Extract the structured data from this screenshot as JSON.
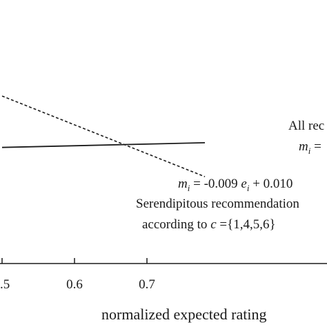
{
  "chart_data": {
    "type": "line",
    "xlabel": "normalized expected rating",
    "xlim": [
      0.5,
      0.78
    ],
    "ylim": [
      0,
      1
    ],
    "x_ticks": [
      {
        "value": 0.5,
        "label": ".5"
      },
      {
        "value": 0.6,
        "label": "0.6"
      },
      {
        "value": 0.7,
        "label": "0.7"
      }
    ],
    "series": [
      {
        "style": "solid",
        "x": [
          0.5,
          0.78
        ],
        "y": [
          0.492,
          0.512
        ]
      },
      {
        "style": "dashed",
        "x": [
          0.5,
          0.78
        ],
        "y": [
          0.71,
          0.368
        ]
      }
    ],
    "annotations": {
      "all": {
        "line1": "All rec",
        "lhs": "m",
        "sub": "i",
        "rhs": " ="
      },
      "seren": {
        "eq_lhs": "m",
        "eq_sub": "i",
        "eq_mid": " = -0.009 ",
        "eq_e": "e",
        "eq_e_sub": "i",
        "eq_tail": " + 0.010",
        "line2": "Serendipitous recommendation",
        "line3_pre": "according to ",
        "line3_c": "c",
        "line3_post": " ={1,4,5,6}"
      }
    }
  }
}
